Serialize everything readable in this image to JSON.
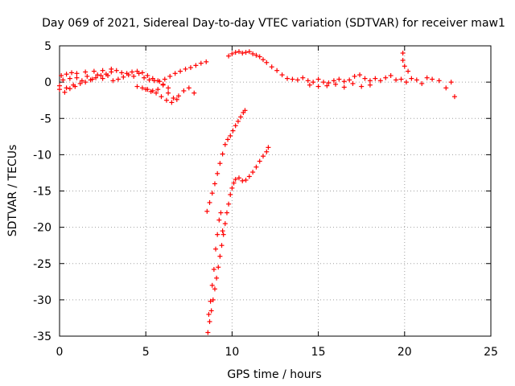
{
  "chart_data": {
    "type": "scatter",
    "title": "Day 069 of 2021, Sidereal Day-to-day VTEC variation (SDTVAR) for receiver maw1",
    "xlabel": "GPS time / hours",
    "ylabel": "SDTVAR / TECUs",
    "xlim": [
      0,
      25
    ],
    "ylim": [
      -35,
      5
    ],
    "xticks": [
      0,
      5,
      10,
      15,
      20,
      25
    ],
    "yticks": [
      5,
      0,
      -5,
      -10,
      -15,
      -20,
      -25,
      -30,
      -35
    ],
    "grid": true,
    "series": [
      {
        "name": "SDTVAR",
        "marker": "+",
        "color": "#ff0000",
        "x": [
          0.0,
          0.2,
          0.4,
          0.6,
          0.8,
          1.0,
          1.3,
          1.6,
          1.9,
          2.2,
          2.5,
          2.8,
          3.1,
          3.4,
          3.7,
          4.0,
          4.3,
          4.6,
          4.9,
          5.2,
          5.5,
          5.8,
          6.1,
          6.4,
          6.7,
          7.0,
          7.3,
          7.6,
          7.9,
          8.2,
          8.5,
          0.0,
          0.3,
          0.6,
          0.9,
          1.2,
          1.5,
          1.8,
          2.1,
          2.4,
          2.7,
          3.0,
          3.3,
          3.6,
          3.9,
          4.2,
          4.5,
          4.8,
          5.1,
          5.4,
          5.7,
          6.0,
          6.3,
          0.1,
          0.4,
          0.7,
          1.0,
          1.5,
          2.0,
          2.5,
          3.0,
          4.5,
          4.8,
          5.1,
          5.4,
          5.7,
          6.0,
          6.3,
          6.6,
          6.9,
          7.2,
          7.5,
          7.8,
          5.0,
          5.3,
          5.6,
          5.9,
          6.2,
          6.5,
          6.8,
          9.8,
          10.0,
          10.2,
          10.4,
          10.6,
          10.8,
          11.0,
          11.2,
          11.4,
          11.6,
          11.8,
          12.0,
          12.3,
          12.6,
          12.9,
          13.2,
          13.5,
          13.8,
          14.1,
          14.4,
          14.7,
          15.0,
          15.3,
          15.6,
          15.9,
          16.2,
          16.5,
          16.8,
          17.1,
          17.4,
          17.7,
          18.0,
          18.3,
          18.6,
          18.9,
          19.2,
          19.5,
          19.8,
          20.1,
          20.4,
          20.7,
          21.0,
          21.3,
          21.6,
          22.0,
          22.4,
          22.7,
          22.9,
          14.5,
          15.0,
          15.5,
          16.0,
          16.5,
          17.0,
          17.5,
          18.0,
          19.9,
          19.9,
          20.0,
          20.2,
          8.55,
          8.7,
          8.85,
          9.0,
          9.15,
          9.3,
          9.45,
          9.6,
          9.75,
          9.9,
          10.05,
          10.2,
          10.35,
          10.5,
          10.65,
          10.75,
          8.6,
          8.7,
          8.8,
          8.9,
          9.0,
          9.1,
          9.2,
          9.3,
          9.4,
          9.5,
          9.6,
          9.7,
          9.8,
          9.9,
          10.0,
          10.1,
          10.2,
          10.4,
          10.6,
          10.8,
          11.0,
          11.2,
          11.4,
          11.6,
          11.8,
          12.0,
          12.1,
          8.65,
          8.75,
          8.85,
          8.95,
          9.05,
          9.15,
          9.25,
          9.35,
          9.45
        ],
        "y": [
          -0.5,
          0.3,
          -0.8,
          0.5,
          -0.4,
          0.6,
          0.2,
          0.8,
          0.4,
          1.0,
          0.5,
          0.9,
          0.2,
          0.4,
          0.7,
          1.0,
          0.8,
          1.2,
          0.6,
          0.3,
          0.2,
          0.1,
          0.4,
          0.8,
          1.2,
          1.5,
          1.8,
          2.0,
          2.3,
          2.6,
          2.8,
          -1.0,
          -1.4,
          -0.9,
          -0.6,
          -0.2,
          0.0,
          0.3,
          0.6,
          0.9,
          1.1,
          1.4,
          1.6,
          1.3,
          1.2,
          1.4,
          1.5,
          1.3,
          0.9,
          0.5,
          0.2,
          -0.3,
          -0.8,
          0.9,
          1.1,
          1.3,
          1.2,
          1.4,
          1.5,
          1.6,
          1.8,
          -0.6,
          -0.8,
          -1.0,
          -1.2,
          -1.0,
          -0.4,
          -1.5,
          -2.2,
          -1.9,
          -1.2,
          -0.8,
          -1.5,
          -1.0,
          -1.3,
          -1.5,
          -2.0,
          -2.5,
          -2.8,
          -2.4,
          3.6,
          3.9,
          4.1,
          4.2,
          4.0,
          4.1,
          4.2,
          3.9,
          3.7,
          3.5,
          3.1,
          2.7,
          2.1,
          1.6,
          1.0,
          0.5,
          0.4,
          0.3,
          0.6,
          0.2,
          0.0,
          0.4,
          0.0,
          -0.1,
          0.2,
          0.4,
          0.1,
          0.3,
          0.8,
          1.0,
          0.5,
          0.2,
          0.5,
          0.2,
          0.6,
          0.9,
          0.3,
          0.4,
          0.0,
          0.5,
          0.3,
          -0.2,
          0.6,
          0.4,
          0.2,
          -0.8,
          0.0,
          -2.0,
          -0.4,
          -0.6,
          -0.5,
          -0.3,
          -0.7,
          -0.2,
          -0.6,
          -0.4,
          4.0,
          3.0,
          2.2,
          1.5,
          -17.8,
          -16.6,
          -15.3,
          -14.0,
          -12.6,
          -11.2,
          -9.9,
          -8.6,
          -7.9,
          -7.4,
          -6.7,
          -6.0,
          -5.4,
          -4.8,
          -4.2,
          -3.9,
          -34.5,
          -33.0,
          -31.5,
          -30.0,
          -28.5,
          -27.0,
          -25.5,
          -24.0,
          -22.5,
          -21.0,
          -19.5,
          -18.0,
          -16.8,
          -15.5,
          -14.6,
          -13.9,
          -13.4,
          -13.2,
          -13.6,
          -13.5,
          -13.0,
          -12.4,
          -11.7,
          -10.9,
          -10.2,
          -9.6,
          -9.0,
          -32.0,
          -30.2,
          -28.0,
          -25.8,
          -23.0,
          -21.0,
          -19.0,
          -18.0,
          -20.5
        ]
      }
    ]
  }
}
